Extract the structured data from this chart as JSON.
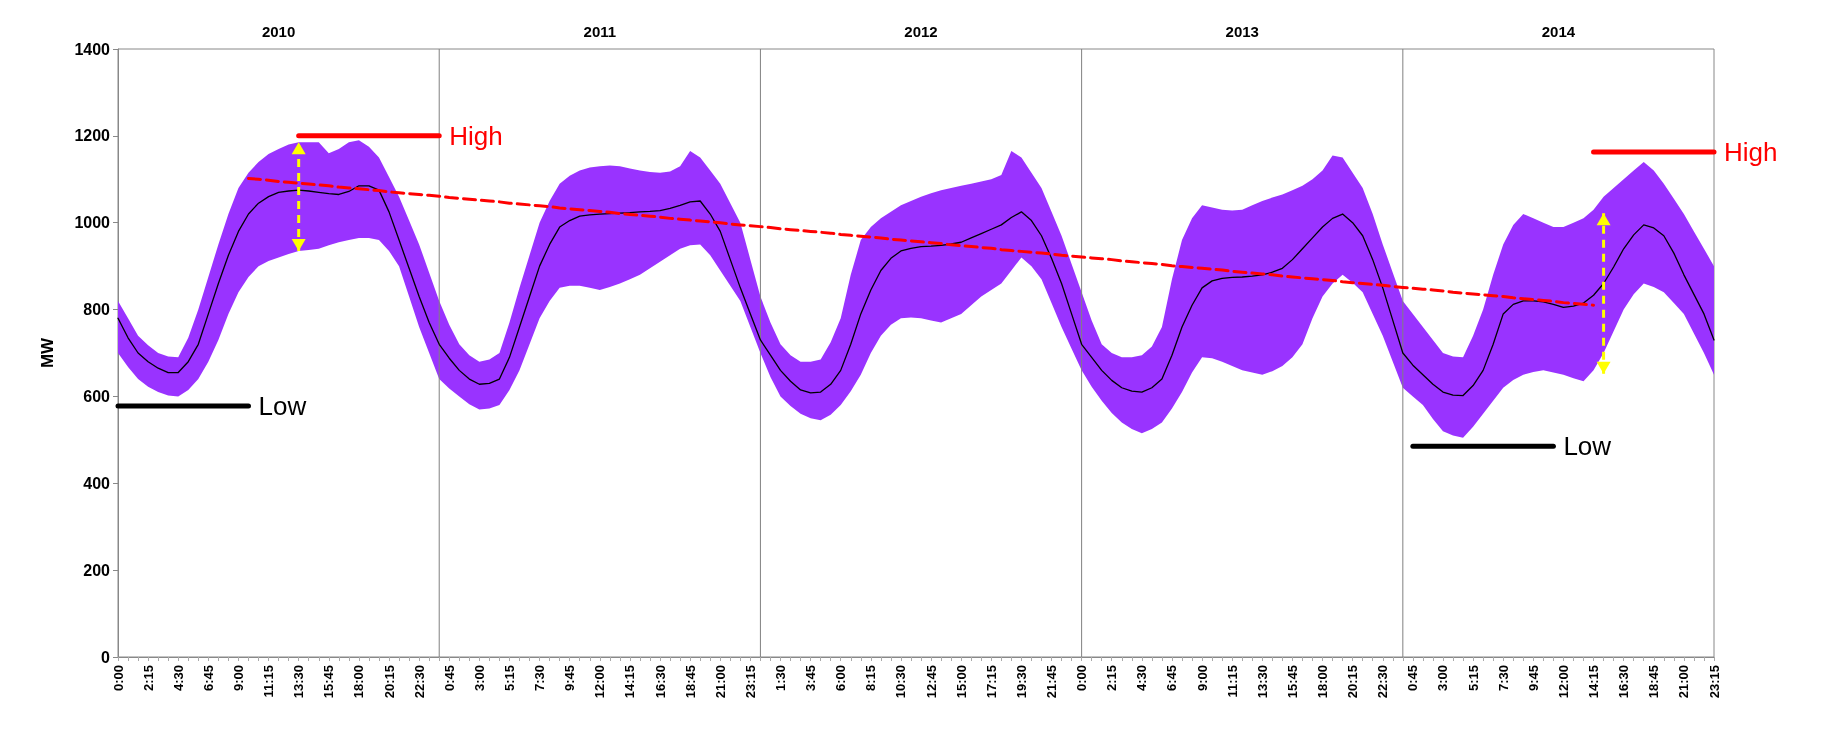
{
  "chart_data": {
    "type": "line",
    "ylabel": "MW",
    "ylim": [
      0,
      1400
    ],
    "yticks": [
      0,
      200,
      400,
      600,
      800,
      1000,
      1200,
      1400
    ],
    "annotations": [
      "2010",
      "2011",
      "2012",
      "2013",
      "2014"
    ],
    "marker": "none",
    "categories": [
      "0:00",
      null,
      null,
      "2:15",
      null,
      null,
      "4:30",
      null,
      null,
      "6:45",
      null,
      null,
      "9:00",
      null,
      null,
      "11:15",
      null,
      null,
      "13:30",
      null,
      null,
      "15:45",
      null,
      null,
      "18:00",
      null,
      null,
      "20:15",
      null,
      null,
      "22:30",
      null,
      null,
      "0:45",
      null,
      null,
      "3:00",
      null,
      null,
      "5:15",
      null,
      null,
      "7:30",
      null,
      null,
      "9:45",
      null,
      null,
      "12:00",
      null,
      null,
      "14:15",
      null,
      null,
      "16:30",
      null,
      null,
      "18:45",
      null,
      null,
      "21:00",
      null,
      null,
      "23:15",
      null,
      null,
      "1:30",
      null,
      null,
      "3:45",
      null,
      null,
      "6:00",
      null,
      null,
      "8:15",
      null,
      null,
      "10:30",
      null,
      null,
      "12:45",
      null,
      null,
      "15:00",
      null,
      null,
      "17:15",
      null,
      null,
      "19:30",
      null,
      null,
      "21:45",
      null,
      null,
      "0:00",
      null,
      null,
      "2:15",
      null,
      null,
      "4:30",
      null,
      null,
      "6:45",
      null,
      null,
      "9:00",
      null,
      null,
      "11:15",
      null,
      null,
      "13:30",
      null,
      null,
      "15:45",
      null,
      null,
      "18:00",
      null,
      null,
      "20:15",
      null,
      null,
      "22:30",
      null,
      null,
      "0:45",
      null,
      null,
      "3:00",
      null,
      null,
      "5:15",
      null,
      null,
      "7:30",
      null,
      null,
      "9:45",
      null,
      null,
      "12:00",
      null,
      null,
      "14:15",
      null,
      null,
      "16:30",
      null,
      null,
      "18:45",
      null,
      null,
      "21:00",
      null,
      null,
      "23:15"
    ],
    "series": [
      {
        "color": "#000000",
        "values": [
          780,
          735,
          700,
          680,
          665,
          655,
          655,
          680,
          720,
          790,
          860,
          925,
          980,
          1020,
          1045,
          1060,
          1070,
          1073,
          1075,
          1073,
          1070,
          1067,
          1065,
          1072,
          1085,
          1085,
          1075,
          1025,
          960,
          895,
          830,
          770,
          720,
          688,
          660,
          640,
          628,
          630,
          640,
          690,
          760,
          830,
          900,
          950,
          990,
          1005,
          1015,
          1018,
          1020,
          1021,
          1022,
          1023,
          1025,
          1026,
          1028,
          1033,
          1040,
          1048,
          1050,
          1020,
          980,
          915,
          850,
          790,
          730,
          695,
          660,
          635,
          615,
          608,
          610,
          628,
          660,
          720,
          790,
          845,
          890,
          918,
          935,
          941,
          945,
          946,
          948,
          951,
          955,
          965,
          975,
          985,
          995,
          1012,
          1025,
          1005,
          970,
          918,
          860,
          790,
          720,
          690,
          660,
          637,
          620,
          612,
          610,
          620,
          640,
          695,
          760,
          810,
          850,
          866,
          872,
          874,
          875,
          877,
          880,
          886,
          895,
          915,
          940,
          965,
          990,
          1010,
          1020,
          1000,
          970,
          915,
          850,
          775,
          700,
          672,
          650,
          628,
          610,
          603,
          602,
          625,
          660,
          720,
          790,
          812,
          820,
          820,
          818,
          812,
          805,
          808,
          815,
          833,
          860,
          898,
          940,
          972,
          995,
          988,
          970,
          930,
          880,
          835,
          790,
          730
        ],
        "upper": [
          820,
          780,
          740,
          718,
          700,
          692,
          690,
          735,
          800,
          875,
          950,
          1020,
          1080,
          1115,
          1140,
          1158,
          1170,
          1180,
          1185,
          1185,
          1185,
          1160,
          1170,
          1185,
          1190,
          1175,
          1150,
          1105,
          1060,
          1005,
          950,
          885,
          820,
          765,
          720,
          695,
          680,
          685,
          700,
          770,
          850,
          925,
          1000,
          1050,
          1090,
          1108,
          1120,
          1127,
          1130,
          1132,
          1130,
          1125,
          1120,
          1117,
          1115,
          1118,
          1130,
          1165,
          1150,
          1120,
          1090,
          1045,
          1000,
          915,
          830,
          770,
          720,
          695,
          680,
          680,
          685,
          725,
          780,
          880,
          960,
          990,
          1010,
          1025,
          1040,
          1050,
          1060,
          1068,
          1075,
          1080,
          1085,
          1090,
          1095,
          1100,
          1110,
          1165,
          1150,
          1115,
          1080,
          1025,
          970,
          905,
          840,
          775,
          720,
          700,
          690,
          690,
          695,
          715,
          760,
          870,
          960,
          1010,
          1040,
          1035,
          1030,
          1028,
          1030,
          1040,
          1050,
          1058,
          1065,
          1075,
          1085,
          1100,
          1120,
          1155,
          1150,
          1115,
          1080,
          1020,
          950,
          885,
          820,
          790,
          760,
          730,
          700,
          692,
          690,
          740,
          800,
          880,
          950,
          995,
          1020,
          1010,
          1000,
          990,
          990,
          1000,
          1010,
          1030,
          1060,
          1080,
          1100,
          1120,
          1140,
          1120,
          1090,
          1055,
          1020,
          980,
          940,
          900
        ],
        "lower": [
          700,
          668,
          640,
          622,
          610,
          602,
          600,
          615,
          640,
          680,
          730,
          790,
          840,
          875,
          900,
          912,
          920,
          928,
          935,
          937,
          940,
          948,
          955,
          960,
          965,
          965,
          960,
          935,
          900,
          830,
          760,
          700,
          640,
          618,
          600,
          582,
          570,
          572,
          580,
          615,
          660,
          720,
          780,
          820,
          850,
          855,
          855,
          850,
          845,
          852,
          860,
          870,
          880,
          895,
          910,
          925,
          940,
          948,
          950,
          925,
          890,
          855,
          820,
          760,
          700,
          645,
          600,
          578,
          560,
          550,
          545,
          558,
          580,
          612,
          650,
          700,
          740,
          765,
          780,
          782,
          780,
          775,
          770,
          780,
          790,
          810,
          830,
          845,
          860,
          890,
          920,
          900,
          870,
          815,
          760,
          710,
          660,
          622,
          590,
          562,
          540,
          525,
          515,
          525,
          540,
          572,
          610,
          655,
          690,
          688,
          680,
          670,
          660,
          655,
          650,
          658,
          670,
          690,
          720,
          780,
          830,
          860,
          880,
          862,
          840,
          790,
          740,
          680,
          620,
          600,
          580,
          548,
          520,
          510,
          505,
          530,
          560,
          590,
          620,
          638,
          650,
          656,
          660,
          655,
          650,
          642,
          635,
          660,
          700,
          750,
          800,
          835,
          860,
          852,
          840,
          815,
          790,
          745,
          700,
          650
        ],
        "errors": [
          null,
          null,
          null,
          null,
          null,
          null,
          null,
          null,
          null,
          null,
          null,
          null,
          null,
          null,
          null,
          null,
          null,
          null,
          [
            935,
            1185
          ],
          null,
          null,
          null,
          null,
          null,
          null,
          null,
          null,
          null,
          null,
          null,
          null,
          null,
          null,
          null,
          null,
          null,
          null,
          null,
          null,
          null,
          null,
          null,
          null,
          null,
          null,
          null,
          null,
          null,
          null,
          null,
          null,
          null,
          null,
          null,
          null,
          null,
          null,
          null,
          null,
          null,
          null,
          null,
          null,
          null,
          null,
          null,
          null,
          null,
          null,
          null,
          null,
          null,
          null,
          null,
          null,
          null,
          null,
          null,
          null,
          null,
          null,
          null,
          null,
          null,
          null,
          null,
          null,
          null,
          null,
          null,
          null,
          null,
          null,
          null,
          null,
          null,
          null,
          null,
          null,
          null,
          null,
          null,
          null,
          null,
          null,
          null,
          null,
          null,
          null,
          null,
          null,
          null,
          null,
          null,
          null,
          null,
          null,
          null,
          null,
          null,
          null,
          null,
          null,
          null,
          null,
          null,
          null,
          null,
          null,
          null,
          null,
          null,
          null,
          null,
          null,
          null,
          null,
          null,
          null,
          null,
          null,
          null,
          null,
          null,
          null,
          null,
          null,
          null,
          [
            652,
            1022
          ],
          null,
          null,
          null,
          null,
          null,
          null,
          null,
          null,
          null,
          null,
          null
        ]
      },
      {
        "color": "#ff0000",
        "line_style": "dashed",
        "values": [
          null,
          null,
          null,
          null,
          null,
          null,
          null,
          null,
          null,
          null,
          null,
          null,
          null,
          1102,
          1100,
          1098,
          1095,
          1093,
          1091,
          1089,
          1087,
          1085,
          1082,
          1080,
          1078,
          1076,
          1074,
          1071,
          1069,
          1067,
          1065,
          1063,
          1061,
          1058,
          1056,
          1054,
          1052,
          1050,
          1048,
          1045,
          1043,
          1041,
          1039,
          1037,
          1034,
          1032,
          1030,
          1028,
          1026,
          1024,
          1021,
          1019,
          1017,
          1015,
          1013,
          1010,
          1008,
          1006,
          1004,
          1002,
          1000,
          997,
          995,
          993,
          991,
          989,
          986,
          984,
          982,
          980,
          978,
          976,
          973,
          971,
          969,
          967,
          965,
          962,
          960,
          958,
          956,
          954,
          952,
          949,
          947,
          945,
          943,
          941,
          938,
          936,
          934,
          932,
          930,
          928,
          925,
          923,
          921,
          919,
          917,
          915,
          912,
          910,
          908,
          906,
          904,
          901,
          899,
          897,
          895,
          893,
          891,
          888,
          886,
          884,
          882,
          880,
          877,
          875,
          873,
          871,
          869,
          867,
          864,
          862,
          860,
          858,
          856,
          853,
          851,
          849,
          847,
          845,
          843,
          840,
          838,
          836,
          834,
          832,
          830,
          827,
          825,
          823,
          821,
          819,
          816,
          814,
          812,
          810,
          null,
          null,
          null,
          null,
          null,
          null,
          null,
          null,
          null,
          null,
          null,
          null
        ]
      },
      {
        "name": "High",
        "color": "#ff0000",
        "values": [
          null,
          null,
          null,
          null,
          null,
          null,
          null,
          null,
          null,
          null,
          null,
          null,
          null,
          null,
          null,
          null,
          null,
          null,
          1200,
          1200,
          1200,
          1200,
          1200,
          1200,
          1200,
          1200,
          1200,
          1200,
          1200,
          1200,
          1200,
          1200,
          1200,
          null,
          null,
          null,
          null,
          null,
          null,
          null,
          null,
          null,
          null,
          null,
          null,
          null,
          null,
          null,
          null,
          null,
          null,
          null,
          null,
          null,
          null,
          null,
          null,
          null,
          null,
          null,
          null,
          null,
          null,
          null,
          null,
          null,
          null,
          null,
          null,
          null,
          null,
          null,
          null,
          null,
          null,
          null,
          null,
          null,
          null,
          null,
          null,
          null,
          null,
          null,
          null,
          null,
          null,
          null,
          null,
          null,
          null,
          null,
          null,
          null,
          null,
          null,
          null,
          null,
          null,
          null,
          null,
          null,
          null,
          null,
          null,
          null,
          null,
          null,
          null,
          null,
          null,
          null,
          null,
          null,
          null,
          null,
          null,
          null,
          null,
          null,
          null,
          null,
          null,
          null,
          null,
          null,
          null,
          null,
          null,
          null,
          null,
          null,
          null,
          null,
          null,
          null,
          null,
          null,
          null,
          null,
          null,
          null,
          null,
          null,
          null,
          null,
          null,
          null,
          null,
          null,
          null,
          null,
          null,
          null,
          null,
          null,
          null,
          null,
          null,
          null
        ]
      },
      {
        "name": "High",
        "color": "#ff0000",
        "values": [
          null,
          null,
          null,
          null,
          null,
          null,
          null,
          null,
          null,
          null,
          null,
          null,
          null,
          null,
          null,
          null,
          null,
          null,
          null,
          null,
          null,
          null,
          null,
          null,
          null,
          null,
          null,
          null,
          null,
          null,
          null,
          null,
          null,
          null,
          null,
          null,
          null,
          null,
          null,
          null,
          null,
          null,
          null,
          null,
          null,
          null,
          null,
          null,
          null,
          null,
          null,
          null,
          null,
          null,
          null,
          null,
          null,
          null,
          null,
          null,
          null,
          null,
          null,
          null,
          null,
          null,
          null,
          null,
          null,
          null,
          null,
          null,
          null,
          null,
          null,
          null,
          null,
          null,
          null,
          null,
          null,
          null,
          null,
          null,
          null,
          null,
          null,
          null,
          null,
          null,
          null,
          null,
          null,
          null,
          null,
          null,
          null,
          null,
          null,
          null,
          null,
          null,
          null,
          null,
          null,
          null,
          null,
          null,
          null,
          null,
          null,
          null,
          null,
          null,
          null,
          null,
          null,
          null,
          null,
          null,
          null,
          null,
          null,
          null,
          null,
          null,
          null,
          null,
          null,
          null,
          null,
          null,
          null,
          null,
          null,
          null,
          null,
          null,
          null,
          null,
          null,
          null,
          null,
          null,
          null,
          null,
          null,
          1163,
          1163,
          1163,
          1163,
          1163,
          1163,
          1163,
          1163,
          1163,
          1163,
          1163,
          1163,
          1163
        ]
      },
      {
        "name": "Low",
        "color": "#000000",
        "values": [
          578,
          578,
          578,
          578,
          578,
          578,
          578,
          578,
          578,
          578,
          578,
          578,
          578,
          578,
          null,
          null,
          null,
          null,
          null,
          null,
          null,
          null,
          null,
          null,
          null,
          null,
          null,
          null,
          null,
          null,
          null,
          null,
          null,
          null,
          null,
          null,
          null,
          null,
          null,
          null,
          null,
          null,
          null,
          null,
          null,
          null,
          null,
          null,
          null,
          null,
          null,
          null,
          null,
          null,
          null,
          null,
          null,
          null,
          null,
          null,
          null,
          null,
          null,
          null,
          null,
          null,
          null,
          null,
          null,
          null,
          null,
          null,
          null,
          null,
          null,
          null,
          null,
          null,
          null,
          null,
          null,
          null,
          null,
          null,
          null,
          null,
          null,
          null,
          null,
          null,
          null,
          null,
          null,
          null,
          null,
          null,
          null,
          null,
          null,
          null,
          null,
          null,
          null,
          null,
          null,
          null,
          null,
          null,
          null,
          null,
          null,
          null,
          null,
          null,
          null,
          null,
          null,
          null,
          null,
          null,
          null,
          null,
          null,
          null,
          null,
          null,
          null,
          null,
          null,
          null,
          null,
          null,
          null,
          null,
          null,
          null,
          null,
          null,
          null,
          null,
          null,
          null,
          null,
          null,
          null,
          null,
          null,
          null,
          null,
          null,
          null,
          null,
          null,
          null,
          null,
          null,
          null,
          null,
          null,
          null
        ]
      },
      {
        "name": "Low",
        "color": "#000000",
        "values": [
          null,
          null,
          null,
          null,
          null,
          null,
          null,
          null,
          null,
          null,
          null,
          null,
          null,
          null,
          null,
          null,
          null,
          null,
          null,
          null,
          null,
          null,
          null,
          null,
          null,
          null,
          null,
          null,
          null,
          null,
          null,
          null,
          null,
          null,
          null,
          null,
          null,
          null,
          null,
          null,
          null,
          null,
          null,
          null,
          null,
          null,
          null,
          null,
          null,
          null,
          null,
          null,
          null,
          null,
          null,
          null,
          null,
          null,
          null,
          null,
          null,
          null,
          null,
          null,
          null,
          null,
          null,
          null,
          null,
          null,
          null,
          null,
          null,
          null,
          null,
          null,
          null,
          null,
          null,
          null,
          null,
          null,
          null,
          null,
          null,
          null,
          null,
          null,
          null,
          null,
          null,
          null,
          null,
          null,
          null,
          null,
          null,
          null,
          null,
          null,
          null,
          null,
          null,
          null,
          null,
          null,
          null,
          null,
          null,
          null,
          null,
          null,
          null,
          null,
          null,
          null,
          null,
          null,
          null,
          null,
          null,
          null,
          null,
          null,
          null,
          null,
          null,
          null,
          null,
          485,
          485,
          485,
          485,
          485,
          485,
          485,
          485,
          485,
          485,
          485,
          485,
          485,
          485,
          485,
          null,
          null,
          null,
          null,
          null,
          null,
          null,
          null,
          null,
          null,
          null,
          null,
          null,
          null,
          null,
          null
        ]
      }
    ]
  }
}
